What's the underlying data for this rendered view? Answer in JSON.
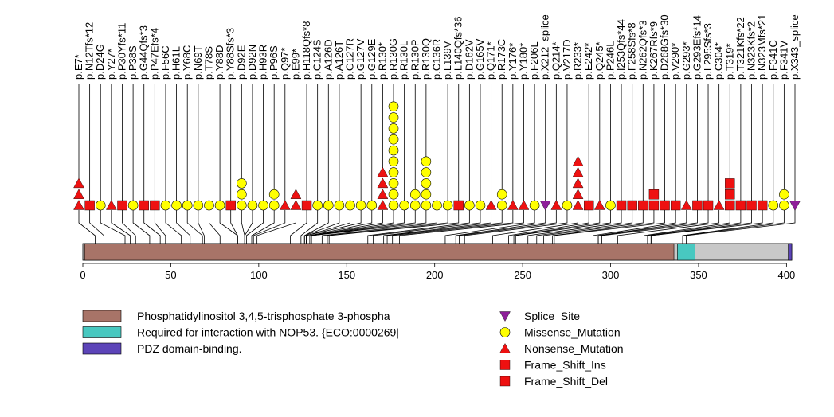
{
  "chart_data": {
    "type": "lollipop",
    "xlim": [
      0,
      403
    ],
    "xticks": [
      0,
      50,
      100,
      150,
      200,
      250,
      300,
      350,
      400
    ],
    "domains": [
      {
        "name": "Phosphatidylinositol 3,4,5-trisphosphate 3-phospha",
        "start": 1,
        "end": 336,
        "color": "#a87468"
      },
      {
        "name": "Required for interaction with NOP53. {ECO:0000269|",
        "start": 338,
        "end": 348,
        "color": "#48c8c0"
      },
      {
        "name": "PDZ domain-binding.",
        "start": 401,
        "end": 403,
        "color": "#5c44b8"
      }
    ],
    "legend": [
      {
        "name": "Phosphatidylinositol 3,4,5-trisphosphate 3-phospha",
        "color": "#a87468",
        "kind": "domain"
      },
      {
        "name": "Required for interaction with NOP53. {ECO:0000269|",
        "color": "#48c8c0",
        "kind": "domain"
      },
      {
        "name": "PDZ domain-binding.",
        "color": "#5c44b8",
        "kind": "domain"
      },
      {
        "name": "Splice_Site",
        "color": "#8e1e9a",
        "kind": "splice"
      },
      {
        "name": "Missense_Mutation",
        "color": "#ffff00",
        "kind": "missense"
      },
      {
        "name": "Nonsense_Mutation",
        "color": "#ee1111",
        "kind": "nonsense"
      },
      {
        "name": "Frame_Shift_Ins",
        "color": "#ee1111",
        "kind": "fsins"
      },
      {
        "name": "Frame_Shift_Del",
        "color": "#ee1111",
        "kind": "fsdel"
      }
    ],
    "mutations": [
      {
        "label": "p.E7*",
        "pos": 7,
        "stack": [
          "nonsense",
          "nonsense",
          "nonsense"
        ]
      },
      {
        "label": "p.N12Tfs*12",
        "pos": 12,
        "stack": [
          "fsdel"
        ]
      },
      {
        "label": "p.D24G",
        "pos": 24,
        "stack": [
          "missense"
        ]
      },
      {
        "label": "p.Y27*",
        "pos": 27,
        "stack": [
          "nonsense"
        ]
      },
      {
        "label": "p.P30Yfs*11",
        "pos": 30,
        "stack": [
          "fsdel"
        ]
      },
      {
        "label": "p.P38S",
        "pos": 38,
        "stack": [
          "missense"
        ]
      },
      {
        "label": "p.G44Qfs*3",
        "pos": 44,
        "stack": [
          "fsdel"
        ]
      },
      {
        "label": "p.P47Efs*4",
        "pos": 47,
        "stack": [
          "fsdel"
        ]
      },
      {
        "label": "p.F56C",
        "pos": 56,
        "stack": [
          "missense"
        ]
      },
      {
        "label": "p.H61L",
        "pos": 61,
        "stack": [
          "missense"
        ]
      },
      {
        "label": "p.Y68C",
        "pos": 68,
        "stack": [
          "missense"
        ]
      },
      {
        "label": "p.N69T",
        "pos": 69,
        "stack": [
          "missense"
        ]
      },
      {
        "label": "p.T78S",
        "pos": 78,
        "stack": [
          "missense"
        ]
      },
      {
        "label": "p.Y88D",
        "pos": 88,
        "stack": [
          "missense"
        ]
      },
      {
        "label": "p.Y88Sfs*3",
        "pos": 88,
        "stack": [
          "fsdel"
        ]
      },
      {
        "label": "p.D92E",
        "pos": 92,
        "stack": [
          "missense",
          "missense",
          "missense"
        ]
      },
      {
        "label": "p.D92N",
        "pos": 92,
        "stack": [
          "missense"
        ]
      },
      {
        "label": "p.H93R",
        "pos": 93,
        "stack": [
          "missense"
        ]
      },
      {
        "label": "p.P96S",
        "pos": 96,
        "stack": [
          "missense",
          "missense"
        ]
      },
      {
        "label": "p.Q97*",
        "pos": 97,
        "stack": [
          "nonsense"
        ]
      },
      {
        "label": "p.E99*",
        "pos": 99,
        "stack": [
          "nonsense",
          "nonsense"
        ]
      },
      {
        "label": "p.H118Qfs*8",
        "pos": 118,
        "stack": [
          "fsdel"
        ]
      },
      {
        "label": "p.C124S",
        "pos": 124,
        "stack": [
          "missense"
        ]
      },
      {
        "label": "p.A126D",
        "pos": 126,
        "stack": [
          "missense"
        ]
      },
      {
        "label": "p.A126T",
        "pos": 126,
        "stack": [
          "missense"
        ]
      },
      {
        "label": "p.G127R",
        "pos": 127,
        "stack": [
          "missense"
        ]
      },
      {
        "label": "p.G127V",
        "pos": 127,
        "stack": [
          "missense"
        ]
      },
      {
        "label": "p.G129E",
        "pos": 129,
        "stack": [
          "missense"
        ]
      },
      {
        "label": "p.R130*",
        "pos": 130,
        "stack": [
          "nonsense",
          "nonsense",
          "nonsense",
          "nonsense"
        ]
      },
      {
        "label": "p.R130G",
        "pos": 130,
        "stack": [
          "missense",
          "missense",
          "missense",
          "missense",
          "missense",
          "missense",
          "missense",
          "missense",
          "missense",
          "missense"
        ]
      },
      {
        "label": "p.R130L",
        "pos": 130,
        "stack": [
          "missense"
        ]
      },
      {
        "label": "p.R130P",
        "pos": 130,
        "stack": [
          "missense",
          "missense"
        ]
      },
      {
        "label": "p.R130Q",
        "pos": 130,
        "stack": [
          "missense",
          "missense",
          "missense",
          "missense",
          "missense"
        ]
      },
      {
        "label": "p.C136R",
        "pos": 136,
        "stack": [
          "missense"
        ]
      },
      {
        "label": "p.L139V",
        "pos": 139,
        "stack": [
          "missense"
        ]
      },
      {
        "label": "p.L140Qfs*36",
        "pos": 140,
        "stack": [
          "fsdel"
        ]
      },
      {
        "label": "p.D162V",
        "pos": 162,
        "stack": [
          "missense"
        ]
      },
      {
        "label": "p.G165V",
        "pos": 165,
        "stack": [
          "missense"
        ]
      },
      {
        "label": "p.Q171*",
        "pos": 171,
        "stack": [
          "nonsense"
        ]
      },
      {
        "label": "p.R173C",
        "pos": 173,
        "stack": [
          "missense",
          "missense"
        ]
      },
      {
        "label": "p.Y176*",
        "pos": 176,
        "stack": [
          "nonsense"
        ]
      },
      {
        "label": "p.Y180*",
        "pos": 180,
        "stack": [
          "nonsense"
        ]
      },
      {
        "label": "p.F206L",
        "pos": 206,
        "stack": [
          "missense"
        ]
      },
      {
        "label": "p.X212_splice",
        "pos": 212,
        "stack": [
          "splice"
        ]
      },
      {
        "label": "p.Q214*",
        "pos": 214,
        "stack": [
          "nonsense"
        ]
      },
      {
        "label": "p.V217D",
        "pos": 217,
        "stack": [
          "missense"
        ]
      },
      {
        "label": "p.R233*",
        "pos": 233,
        "stack": [
          "nonsense",
          "nonsense",
          "nonsense",
          "nonsense",
          "nonsense"
        ]
      },
      {
        "label": "p.E242*",
        "pos": 242,
        "stack": [
          "fsdel"
        ]
      },
      {
        "label": "p.Q245*",
        "pos": 245,
        "stack": [
          "nonsense"
        ]
      },
      {
        "label": "p.P246L",
        "pos": 246,
        "stack": [
          "missense"
        ]
      },
      {
        "label": "p.I253Qfs*44",
        "pos": 253,
        "stack": [
          "fsdel"
        ]
      },
      {
        "label": "p.F258Sfs*8",
        "pos": 258,
        "stack": [
          "fsdel"
        ]
      },
      {
        "label": "p.N262Qfs*3",
        "pos": 262,
        "stack": [
          "fsdel"
        ]
      },
      {
        "label": "p.K267Rfs*9",
        "pos": 267,
        "stack": [
          "fsdel",
          "fsins"
        ]
      },
      {
        "label": "p.D268Gfs*30",
        "pos": 268,
        "stack": [
          "fsdel"
        ]
      },
      {
        "label": "p.V290*",
        "pos": 290,
        "stack": [
          "fsdel"
        ]
      },
      {
        "label": "p.G293*",
        "pos": 293,
        "stack": [
          "nonsense"
        ]
      },
      {
        "label": "p.G293Efs*14",
        "pos": 293,
        "stack": [
          "fsdel"
        ]
      },
      {
        "label": "p.L295Sfs*3",
        "pos": 295,
        "stack": [
          "fsdel"
        ]
      },
      {
        "label": "p.C304*",
        "pos": 304,
        "stack": [
          "nonsense"
        ]
      },
      {
        "label": "p.T319*",
        "pos": 319,
        "stack": [
          "fsdel",
          "fsins",
          "fsins"
        ]
      },
      {
        "label": "p.T321Kfs*22",
        "pos": 321,
        "stack": [
          "fsdel"
        ]
      },
      {
        "label": "p.N323Kfs*2",
        "pos": 323,
        "stack": [
          "fsdel"
        ]
      },
      {
        "label": "p.N323Mfs*21",
        "pos": 323,
        "stack": [
          "fsdel"
        ]
      },
      {
        "label": "p.F341C",
        "pos": 341,
        "stack": [
          "missense"
        ]
      },
      {
        "label": "p.F341V",
        "pos": 341,
        "stack": [
          "missense",
          "missense"
        ]
      },
      {
        "label": "p.X343_splice",
        "pos": 343,
        "stack": [
          "splice"
        ]
      }
    ]
  }
}
